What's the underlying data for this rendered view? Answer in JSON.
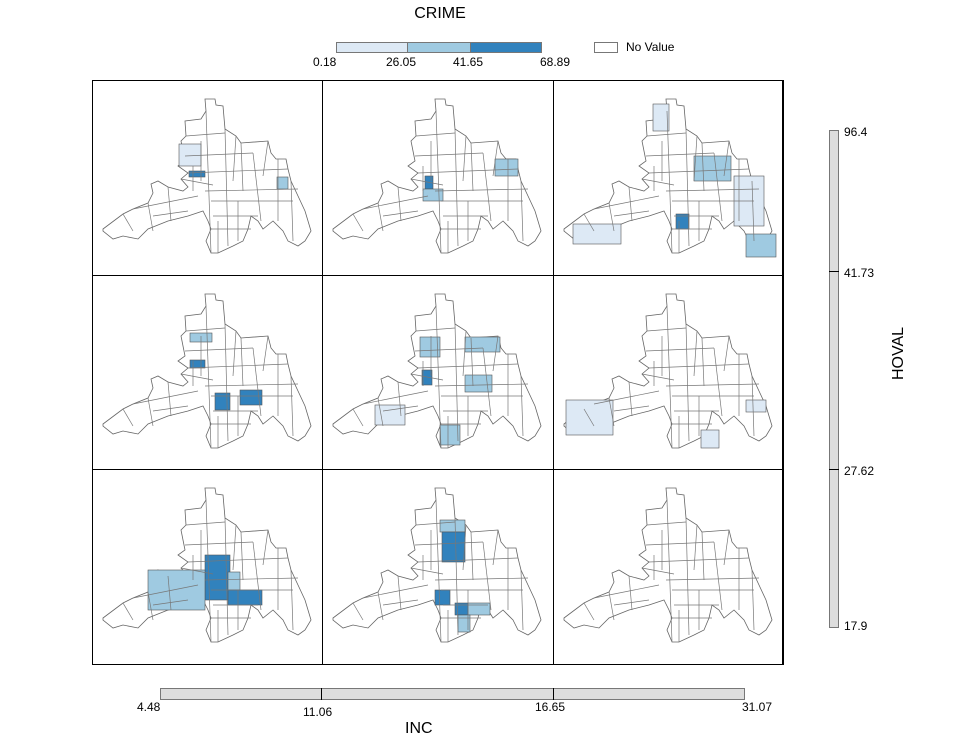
{
  "title": "CRIME",
  "legend": {
    "breaks": [
      "0.18",
      "26.05",
      "41.65",
      "68.89"
    ],
    "colors": [
      "#dde9f5",
      "#9fcae1",
      "#3182bd"
    ],
    "no_value_label": "No Value",
    "no_value_color": "#ffffff"
  },
  "vertical_axis": {
    "label": "HOVAL",
    "ticks": [
      "96.4",
      "41.73",
      "27.62",
      "17.9"
    ]
  },
  "horizontal_axis": {
    "label": "INC",
    "ticks": [
      "4.48",
      "11.06",
      "16.65",
      "31.07"
    ]
  },
  "cells": [
    {
      "row": 0,
      "col": 0,
      "classes": [
        0,
        2,
        1
      ]
    },
    {
      "row": 0,
      "col": 1,
      "classes": [
        1,
        2,
        1
      ]
    },
    {
      "row": 0,
      "col": 2,
      "classes": [
        0,
        1,
        2,
        0,
        0,
        1
      ]
    },
    {
      "row": 1,
      "col": 0,
      "classes": [
        1,
        2,
        2,
        2
      ]
    },
    {
      "row": 1,
      "col": 1,
      "classes": [
        1,
        1,
        2,
        1,
        0,
        1
      ]
    },
    {
      "row": 1,
      "col": 2,
      "classes": [
        0,
        0,
        0
      ]
    },
    {
      "row": 2,
      "col": 0,
      "classes": [
        2,
        1,
        1,
        2
      ]
    },
    {
      "row": 2,
      "col": 1,
      "classes": [
        1,
        2,
        2,
        2,
        1,
        1
      ]
    },
    {
      "row": 2,
      "col": 2,
      "classes": []
    }
  ]
}
